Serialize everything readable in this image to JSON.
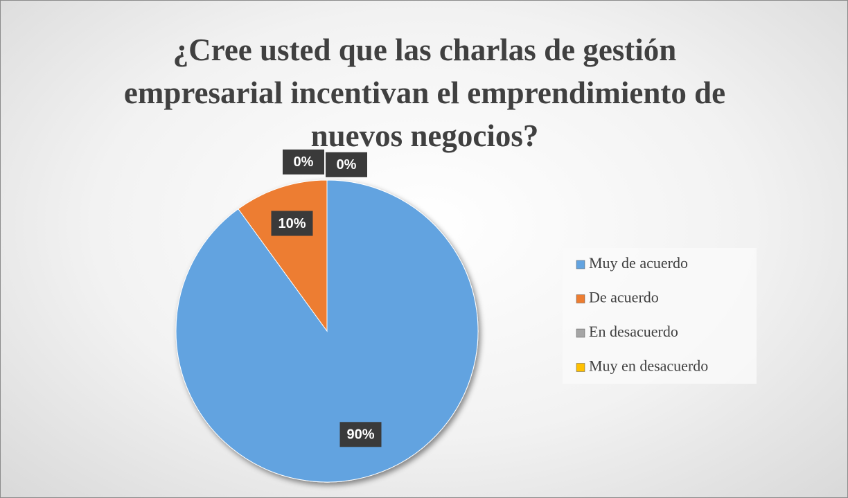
{
  "chart_data": {
    "type": "pie",
    "title": "¿Cree usted que las charlas de gestión empresarial incentivan el emprendimiento de nuevos negocios?",
    "categories": [
      "Muy de acuerdo",
      "De acuerdo",
      "En desacuerdo",
      "Muy en desacuerdo"
    ],
    "values": [
      90,
      10,
      0,
      0
    ],
    "value_labels": [
      "90%",
      "10%",
      "0%",
      "0%"
    ],
    "colors": [
      "#62a3e0",
      "#ed7d31",
      "#a5a5a5",
      "#ffc000"
    ],
    "legend": "right"
  }
}
